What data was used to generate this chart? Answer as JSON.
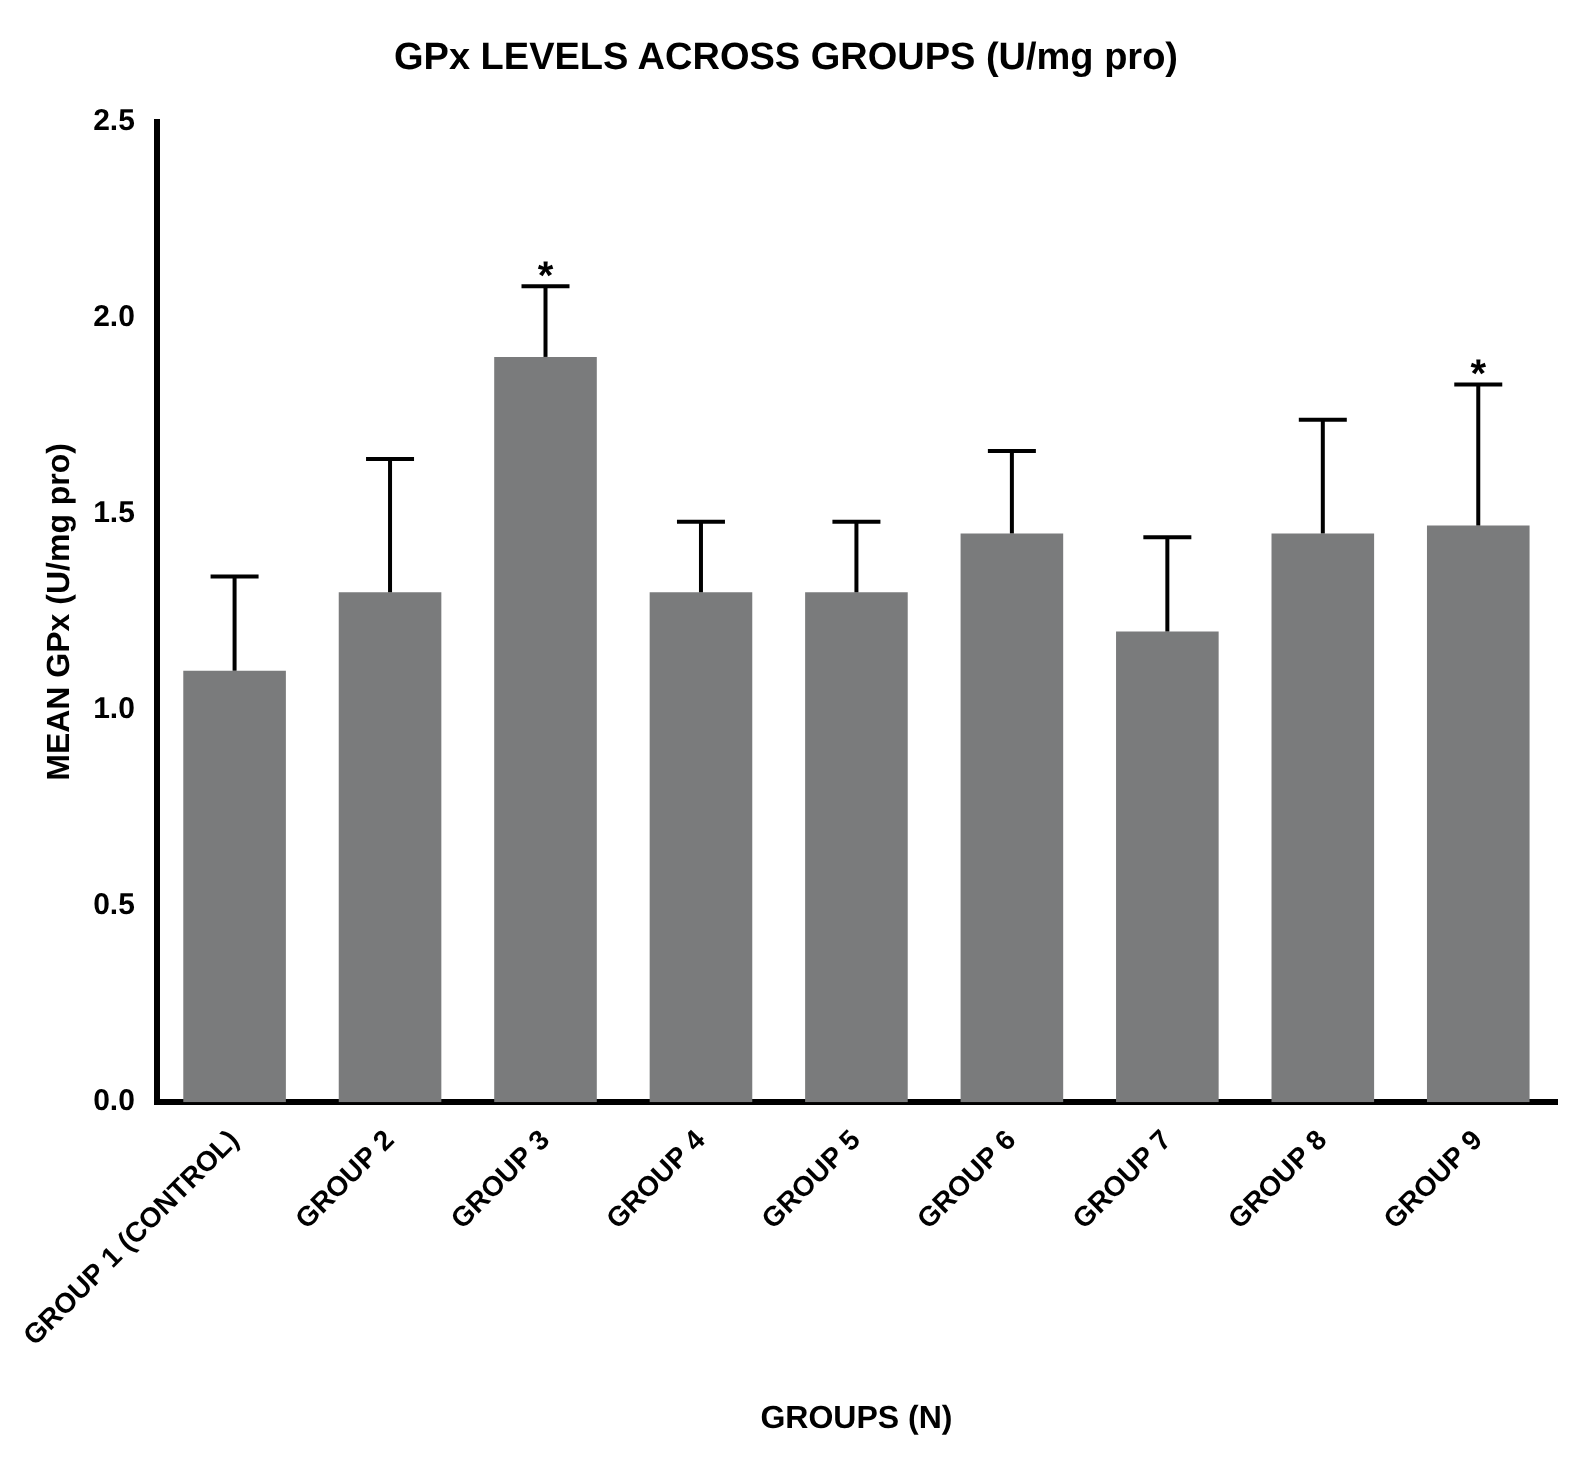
{
  "chart_data": {
    "type": "bar",
    "title": "GPx LEVELS ACROSS GROUPS (U/mg pro)",
    "xlabel": "GROUPS (N)",
    "ylabel": "MEAN GPx (U/mg pro)",
    "categories": [
      "GROUP 1 (CONTROL)",
      "GROUP 2",
      "GROUP 3",
      "GROUP 4",
      "GROUP 5",
      "GROUP 6",
      "GROUP 7",
      "GROUP 8",
      "GROUP 9"
    ],
    "values": [
      1.1,
      1.3,
      1.9,
      1.3,
      1.3,
      1.45,
      1.2,
      1.45,
      1.47
    ],
    "errors": [
      [
        1.1,
        1.34
      ],
      [
        1.3,
        1.64
      ],
      [
        1.9,
        2.08
      ],
      [
        1.3,
        1.48
      ],
      [
        1.3,
        1.48
      ],
      [
        1.45,
        1.66
      ],
      [
        1.2,
        1.44
      ],
      [
        1.45,
        1.74
      ],
      [
        1.47,
        1.83
      ]
    ],
    "color": "#7a7b7c",
    "ylim": [
      0,
      2.5
    ],
    "yticks": [
      {
        "value": 0,
        "label": "0.0"
      },
      0.5,
      {
        "value": 1,
        "label": "1.0"
      },
      1.5,
      {
        "value": 2,
        "label": "2.0"
      },
      2.5
    ],
    "grid": false,
    "legend": false,
    "annotations": [
      {
        "text": "*",
        "x": "GROUP 3",
        "y": 2.08
      },
      {
        "text": "*",
        "x": "GROUP 9",
        "y": 1.83
      }
    ]
  }
}
